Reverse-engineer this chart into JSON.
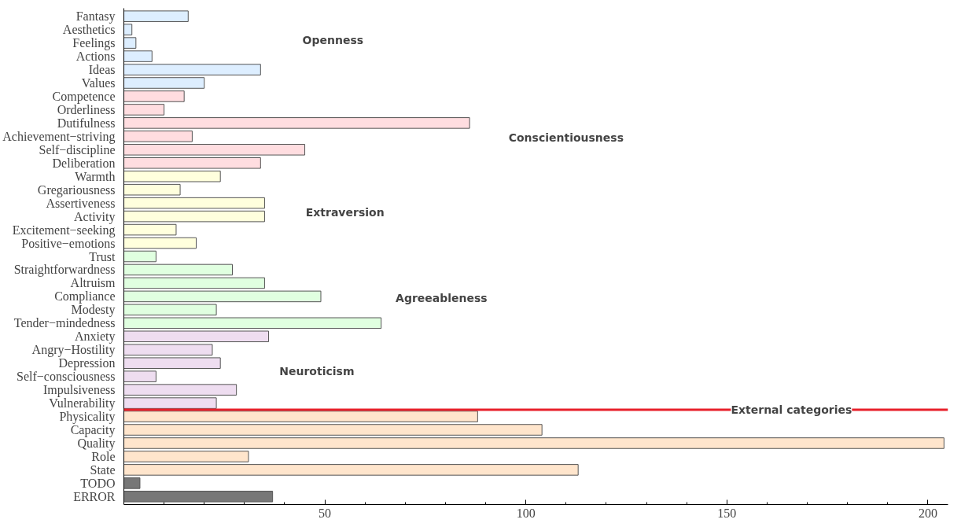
{
  "chart_data": {
    "type": "bar",
    "orientation": "horizontal",
    "categories": [
      "Fantasy",
      "Aesthetics",
      "Feelings",
      "Actions",
      "Ideas",
      "Values",
      "Competence",
      "Orderliness",
      "Dutifulness",
      "Achievement−striving",
      "Self−discipline",
      "Deliberation",
      "Warmth",
      "Gregariousness",
      "Assertiveness",
      "Activity",
      "Excitement−seeking",
      "Positive−emotions",
      "Trust",
      "Straightforwardness",
      "Altruism",
      "Compliance",
      "Modesty",
      "Tender−mindedness",
      "Anxiety",
      "Angry−Hostility",
      "Depression",
      "Self−consciousness",
      "Impulsiveness",
      "Vulnerability",
      "Physicality",
      "Capacity",
      "Quality",
      "Role",
      "State",
      "TODO",
      "ERROR"
    ],
    "values": [
      16,
      2,
      3,
      7,
      34,
      20,
      15,
      10,
      86,
      17,
      45,
      34,
      24,
      14,
      35,
      35,
      13,
      18,
      8,
      27,
      35,
      49,
      23,
      64,
      36,
      22,
      24,
      8,
      28,
      23,
      88,
      104,
      204,
      31,
      113,
      4,
      37
    ],
    "colors": [
      "#ddeeff",
      "#ddeeff",
      "#ddeeff",
      "#ddeeff",
      "#ddeeff",
      "#ddeeff",
      "#ffdde0",
      "#ffdde0",
      "#ffdde0",
      "#ffdde0",
      "#ffdde0",
      "#ffdde0",
      "#ffffdd",
      "#ffffdd",
      "#ffffdd",
      "#ffffdd",
      "#ffffdd",
      "#ffffdd",
      "#e0ffe0",
      "#e0ffe0",
      "#e0ffe0",
      "#e0ffe0",
      "#e0ffe0",
      "#e0ffe0",
      "#eeddf0",
      "#eeddf0",
      "#eeddf0",
      "#eeddf0",
      "#eeddf0",
      "#eeddf0",
      "#ffe5cc",
      "#ffe5cc",
      "#ffe5cc",
      "#ffe5cc",
      "#ffe5cc",
      "#777777",
      "#777777"
    ],
    "xlim": [
      0,
      205
    ],
    "xticks": [
      {
        "value": 10,
        "label": null
      },
      {
        "value": 20,
        "label": null
      },
      {
        "value": 30,
        "label": null
      },
      {
        "value": 40,
        "label": null
      },
      50,
      {
        "value": 60,
        "label": null
      },
      {
        "value": 70,
        "label": null
      },
      {
        "value": 80,
        "label": null
      },
      {
        "value": 90,
        "label": null
      },
      100,
      {
        "value": 110,
        "label": null
      },
      {
        "value": 120,
        "label": null
      },
      {
        "value": 130,
        "label": null
      },
      {
        "value": 140,
        "label": null
      },
      150,
      {
        "value": 160,
        "label": null
      },
      {
        "value": 170,
        "label": null
      },
      {
        "value": 180,
        "label": null
      },
      {
        "value": 190,
        "label": null
      },
      200
    ],
    "annotations": [
      "Openness",
      "Conscientiousness",
      "Extraversion",
      "Agreeableness",
      "Neuroticism"
    ],
    "ref_lines": [
      {
        "axis": "y",
        "value": "Physicality",
        "label": "External categories",
        "color": "#e8202a"
      }
    ],
    "grid": false
  }
}
